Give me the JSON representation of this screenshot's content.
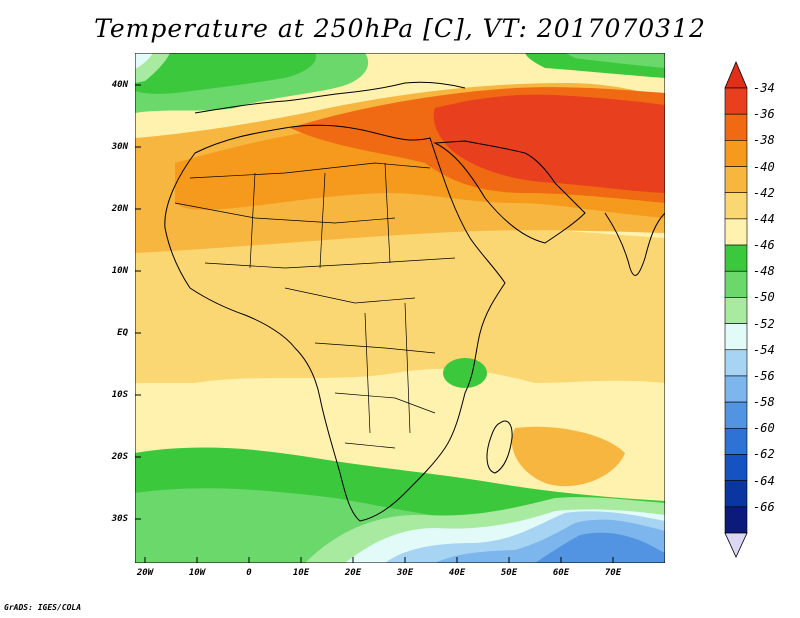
{
  "title": "Temperature at 250hPa [C], VT: 2017070312",
  "footer": "GrADS: IGES/COLA",
  "axes": {
    "lat_ticks": [
      "40N",
      "30N",
      "20N",
      "10N",
      "EQ",
      "10S",
      "20S",
      "30S"
    ],
    "lon_ticks": [
      "20W",
      "10W",
      "0",
      "10E",
      "20E",
      "30E",
      "40E",
      "50E",
      "60E",
      "70E"
    ]
  },
  "colorbar": {
    "labels": [
      "-34",
      "-36",
      "-38",
      "-40",
      "-42",
      "-44",
      "-46",
      "-48",
      "-50",
      "-52",
      "-54",
      "-56",
      "-58",
      "-60",
      "-62",
      "-64",
      "-66"
    ],
    "colors": [
      "#e8401e",
      "#f06a14",
      "#f59a1c",
      "#f7b640",
      "#fbd774",
      "#fff2ae",
      "#3cc83c",
      "#6ad86a",
      "#a8eaa0",
      "#e2fbf8",
      "#a8d4f4",
      "#7cb6ec",
      "#5294e2",
      "#2e72d6",
      "#1553c0",
      "#0a36a0",
      "#0c1a7a"
    ],
    "overflow_top": "#e03018",
    "underflow_bottom": "#dcd8f4"
  },
  "chart_data": {
    "type": "heatmap",
    "title": "Temperature at 250hPa [C], VT: 2017070312",
    "variable": "Temperature at 250 hPa",
    "units": "C",
    "valid_time": "2017070312",
    "lon_range": [
      -22,
      80
    ],
    "lat_range": [
      -37,
      45
    ],
    "color_levels": [
      -34,
      -36,
      -38,
      -40,
      -42,
      -44,
      -46,
      -48,
      -50,
      -52,
      -54,
      -56,
      -58,
      -60,
      -62,
      -64,
      -66
    ],
    "regions": [
      {
        "area": "Arabian Peninsula / Middle East / Pakistan",
        "approx_temp": "-34 to -36"
      },
      {
        "area": "Sahara and North Africa",
        "approx_temp": "-38 to -40"
      },
      {
        "area": "Tropical Africa and Indian Ocean",
        "approx_temp": "-42 to -44"
      },
      {
        "area": "Mediterranean / Southern Europe",
        "approx_temp": "-46 to -48"
      },
      {
        "area": "South Atlantic and Southern Indian Ocean (~25S-32S)",
        "approx_temp": "-46 to -48"
      },
      {
        "area": "South of South Africa (~35S)",
        "approx_temp": "-52 to -56"
      },
      {
        "area": "Lake Victoria / Tanzania",
        "approx_temp": "-46"
      }
    ]
  }
}
